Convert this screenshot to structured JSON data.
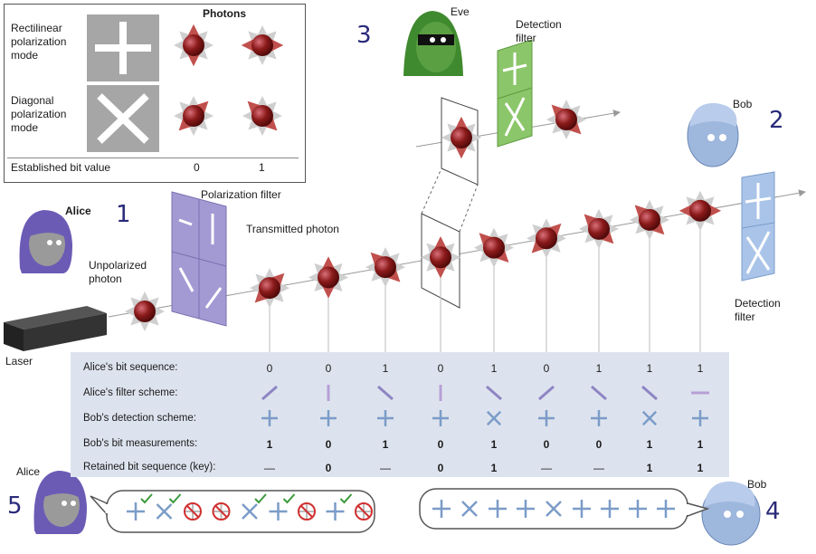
{
  "legend": {
    "photons_header": "Photons",
    "rect_label": [
      "Rectilinear",
      "polarization",
      "mode"
    ],
    "diag_label": [
      "Diagonal",
      "polarization",
      "mode"
    ],
    "bit_label": "Established bit value",
    "bit0": "0",
    "bit1": "1"
  },
  "labels": {
    "alice_top": "Alice",
    "alice_bottom": "Alice",
    "bob_top": "Bob",
    "bob_bottom": "Bob",
    "eve": "Eve",
    "laser": "Laser",
    "unpolarized": [
      "Unpolarized",
      "photon"
    ],
    "polarization_filter": "Polarization filter",
    "transmitted_photon": "Transmitted photon",
    "eve_detection_filter": [
      "Detection",
      "filter"
    ],
    "bob_detection_filter": [
      "Detection",
      "filter"
    ]
  },
  "step_numbers": {
    "n1": "1",
    "n2": "2",
    "n3": "3",
    "n4": "4",
    "n5": "5"
  },
  "table": {
    "row_labels": [
      "Alice's bit sequence:",
      "Alice's filter scheme:",
      "Bob's detection scheme:",
      "Bob's bit measurements:",
      "Retained bit sequence (key):"
    ],
    "alice_bits": [
      "0",
      "0",
      "1",
      "0",
      "1",
      "0",
      "1",
      "1",
      "1"
    ],
    "alice_filters": [
      "diag-right",
      "vertical",
      "diag-left",
      "vertical",
      "diag-left",
      "diag-right",
      "diag-left",
      "diag-left",
      "horizontal"
    ],
    "bob_detection": [
      "plus",
      "plus",
      "plus",
      "plus",
      "cross",
      "plus",
      "plus",
      "cross",
      "plus"
    ],
    "bob_bits": [
      "1",
      "0",
      "1",
      "0",
      "1",
      "0",
      "0",
      "1",
      "1"
    ],
    "retained": [
      "—",
      "0",
      "—",
      "0",
      "1",
      "—",
      "—",
      "1",
      "1"
    ]
  },
  "alice_bubble": [
    "plus-check",
    "cross-check",
    "no",
    "no",
    "cross-check",
    "plus-check",
    "no",
    "plus-check",
    "no"
  ],
  "bob_bubble": [
    "plus",
    "cross",
    "plus",
    "plus",
    "cross",
    "plus",
    "plus",
    "plus",
    "plus"
  ],
  "colors": {
    "photon": "#8b1a1a",
    "red_arrow": "#c0504d",
    "purple_filter": "#a39ad4",
    "green_filter": "#8cc66a",
    "blue_filter": "#a9c4e8",
    "table_bg": "#dde3ee",
    "symbol_blue": "#7b9cc8",
    "avatar_purple": "#6b5bb5",
    "avatar_blue": "#9eb7dd",
    "eve_green": "#3f8a2e"
  }
}
